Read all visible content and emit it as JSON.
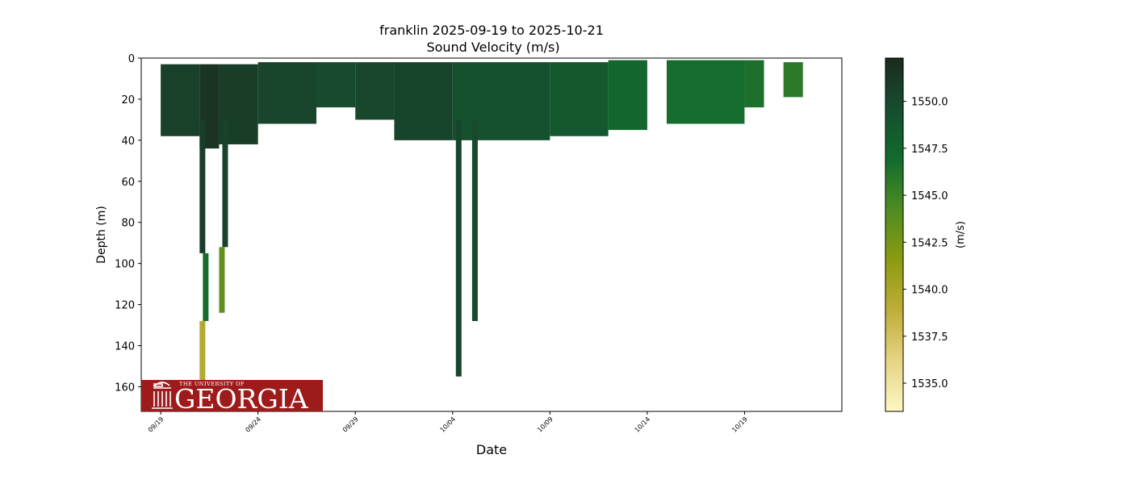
{
  "chart_data": {
    "type": "scatter",
    "title": "franklin 2025-09-19 to 2025-10-21",
    "subtitle": "Sound Velocity (m/s)",
    "xlabel": "Date",
    "ylabel": "Depth (m)",
    "xlim": [
      "2025-09-18",
      "2025-10-24"
    ],
    "ylim": [
      172,
      0
    ],
    "yticks": [
      0,
      20,
      40,
      60,
      80,
      100,
      120,
      140,
      160
    ],
    "xticks": [
      "09/19",
      "09/24",
      "09/29",
      "10/04",
      "10/09",
      "10/14",
      "10/19"
    ],
    "grid": false,
    "colorbar": {
      "label": "(m/s)",
      "range": [
        1533.5,
        1552.3
      ],
      "ticks": [
        1535.0,
        1537.5,
        1540.0,
        1542.5,
        1545.0,
        1547.5,
        1550.0
      ],
      "colors": [
        "#fdf7c4",
        "#e6d483",
        "#bfae3a",
        "#8c9b11",
        "#4e8c22",
        "#126b2e",
        "#174d2f",
        "#1c2a1f"
      ]
    },
    "profile_segments": [
      {
        "start": "2025-09-19",
        "end": "2025-09-21",
        "top": 3,
        "bottom": 38,
        "value": 1550.6
      },
      {
        "start": "2025-09-21",
        "end": "2025-09-22",
        "top": 3,
        "bottom": 44,
        "value": 1551.6
      },
      {
        "start": "2025-09-22",
        "end": "2025-09-24",
        "top": 3,
        "bottom": 42,
        "value": 1550.8
      },
      {
        "start": "2025-09-24",
        "end": "2025-09-27",
        "top": 2,
        "bottom": 32,
        "value": 1550.2
      },
      {
        "start": "2025-09-27",
        "end": "2025-09-29",
        "top": 2,
        "bottom": 24,
        "value": 1549.8
      },
      {
        "start": "2025-09-29",
        "end": "2025-10-01",
        "top": 2,
        "bottom": 30,
        "value": 1550.1
      },
      {
        "start": "2025-10-01",
        "end": "2025-10-04",
        "top": 2,
        "bottom": 40,
        "value": 1550.3
      },
      {
        "start": "2025-10-04",
        "end": "2025-10-09",
        "top": 2,
        "bottom": 40,
        "value": 1549.3
      },
      {
        "start": "2025-10-09",
        "end": "2025-10-12",
        "top": 2,
        "bottom": 38,
        "value": 1548.6
      },
      {
        "start": "2025-10-12",
        "end": "2025-10-14",
        "top": 1,
        "bottom": 35,
        "value": 1547.4
      },
      {
        "start": "2025-10-15",
        "end": "2025-10-19",
        "top": 1,
        "bottom": 32,
        "value": 1546.8
      },
      {
        "start": "2025-10-19",
        "end": "2025-10-20",
        "top": 1,
        "bottom": 24,
        "value": 1546.5
      },
      {
        "start": "2025-10-21",
        "end": "2025-10-22",
        "top": 2,
        "bottom": 19,
        "value": 1545.8
      }
    ],
    "deep_casts": [
      {
        "date": "2025-09-21",
        "top": 30,
        "bottom": 95,
        "value": 1550.8
      },
      {
        "date": "2025-09-21",
        "top": 95,
        "bottom": 128,
        "value": 1546.8
      },
      {
        "date": "2025-09-21",
        "top": 128,
        "bottom": 158,
        "value": 1539.5
      },
      {
        "date": "2025-09-22",
        "top": 30,
        "bottom": 92,
        "value": 1550.4
      },
      {
        "date": "2025-09-22",
        "top": 92,
        "bottom": 124,
        "value": 1543.5
      },
      {
        "date": "2025-10-04",
        "top": 30,
        "bottom": 155,
        "value": 1550.2
      },
      {
        "date": "2025-10-05",
        "top": 30,
        "bottom": 128,
        "value": 1549.9
      }
    ]
  },
  "logo": {
    "line1": "THE UNIVERSITY OF",
    "line2": "GEORGIA",
    "color": "#9e1b1b"
  }
}
